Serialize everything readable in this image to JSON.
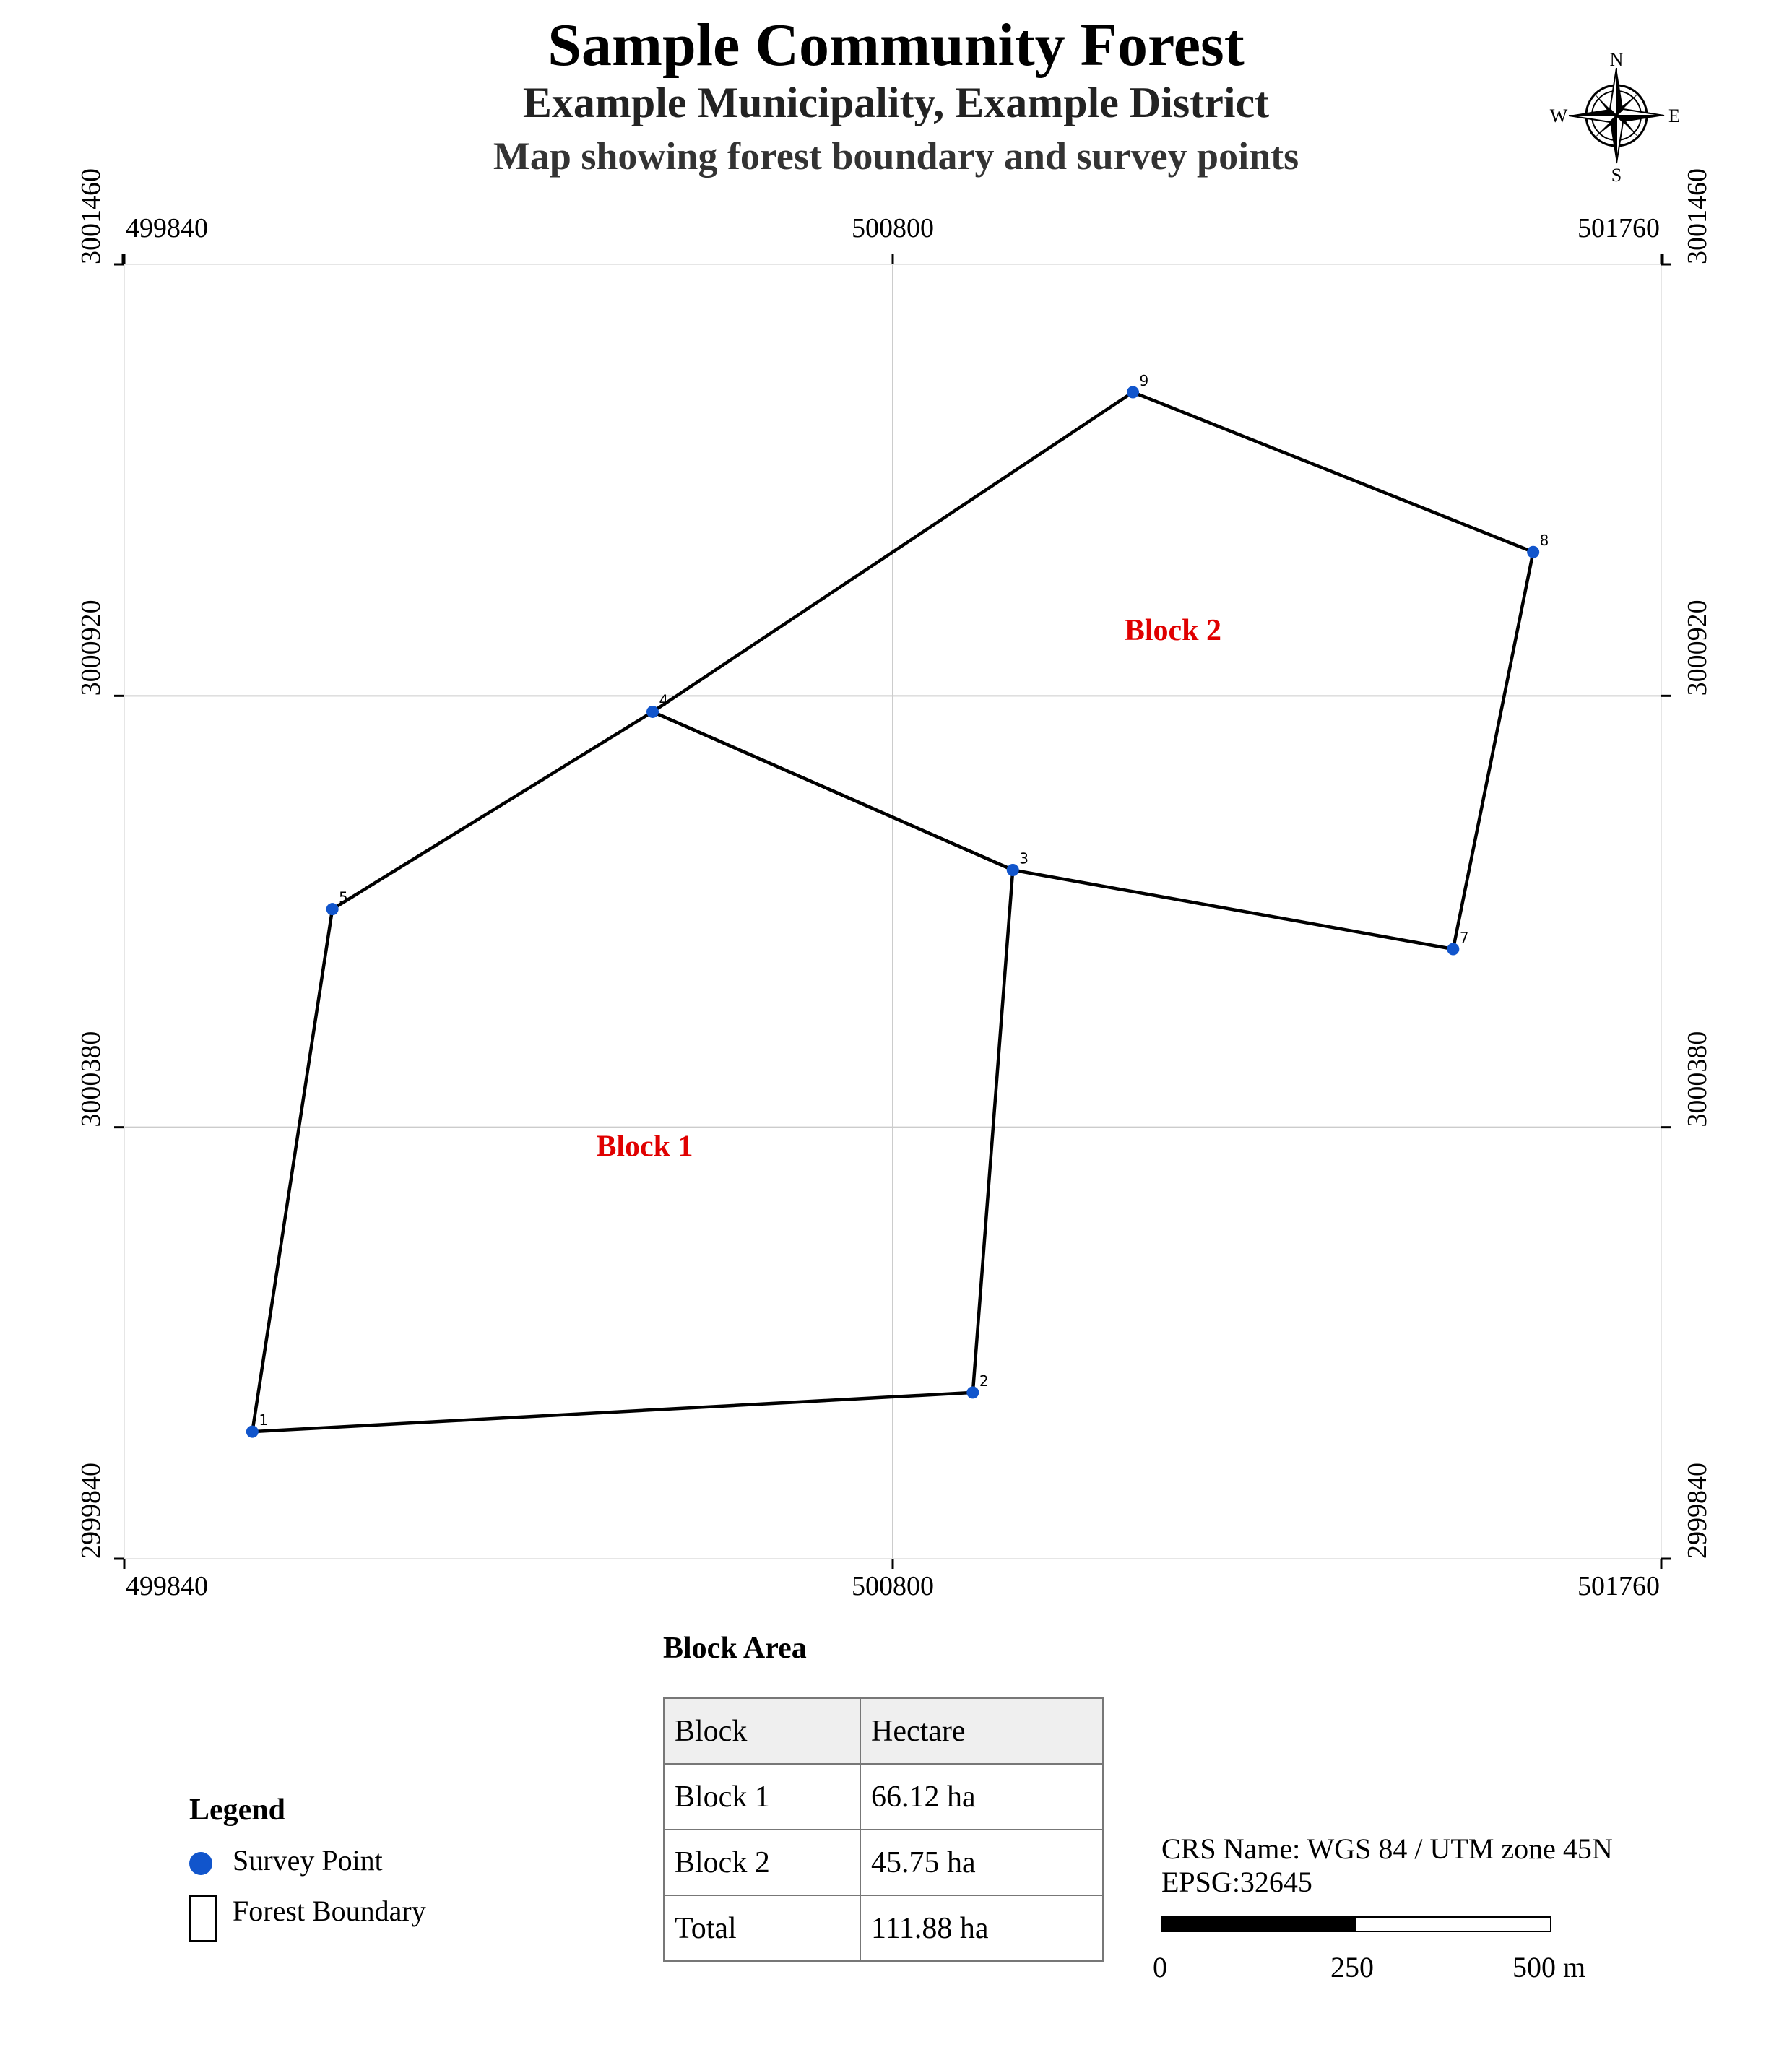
{
  "header": {
    "title": "Sample Community Forest",
    "subtitle": "Example Municipality, Example District",
    "description": "Map showing forest boundary and survey points"
  },
  "north_arrow": {
    "icon": "compass-rose-icon",
    "n": "N",
    "s": "S",
    "e": "E",
    "w": "W"
  },
  "map": {
    "x_range": [
      499840,
      501760
    ],
    "y_range": [
      2999840,
      3001460
    ],
    "x_ticks": [
      "499840",
      "500800",
      "501760"
    ],
    "y_ticks": [
      "2999840",
      "3000380",
      "3000920",
      "3001460"
    ],
    "grid": true,
    "point_color": "#1155cc",
    "boundary_color": "#000000",
    "label_color": "#e00000",
    "points": [
      {
        "id": "1",
        "x": 500000,
        "y": 2999999
      },
      {
        "id": "2",
        "x": 500900,
        "y": 3000048
      },
      {
        "id": "3",
        "x": 500950,
        "y": 3000702
      },
      {
        "id": "4",
        "x": 500500,
        "y": 3000900
      },
      {
        "id": "5",
        "x": 500100,
        "y": 3000653
      },
      {
        "id": "7",
        "x": 501500,
        "y": 3000603
      },
      {
        "id": "8",
        "x": 501600,
        "y": 3001100
      },
      {
        "id": "9",
        "x": 501100,
        "y": 3001300
      }
    ],
    "blocks": [
      {
        "name": "Block 1",
        "ring": [
          "1",
          "2",
          "3",
          "4",
          "5"
        ],
        "label_x": 500490,
        "label_y": 3000344
      },
      {
        "name": "Block 2",
        "ring": [
          "4",
          "9",
          "8",
          "7",
          "3"
        ],
        "label_x": 501150,
        "label_y": 3000990
      }
    ]
  },
  "area_table": {
    "title": "Block Area",
    "headers": [
      "Block",
      "Hectare"
    ],
    "rows": [
      [
        "Block 1",
        "66.12 ha"
      ],
      [
        "Block 2",
        "45.75 ha"
      ],
      [
        "Total",
        "111.88 ha"
      ]
    ]
  },
  "legend": {
    "title": "Legend",
    "items": [
      {
        "label": "Survey Point",
        "icon": "blue-dot-icon"
      },
      {
        "label": "Forest Boundary",
        "icon": "rectangle-outline-icon"
      }
    ]
  },
  "crs": {
    "name": "CRS Name: WGS 84 / UTM zone 45N",
    "epsg": "EPSG:32645"
  },
  "scale_bar": {
    "labels": [
      "0",
      "250",
      "500 m"
    ]
  }
}
